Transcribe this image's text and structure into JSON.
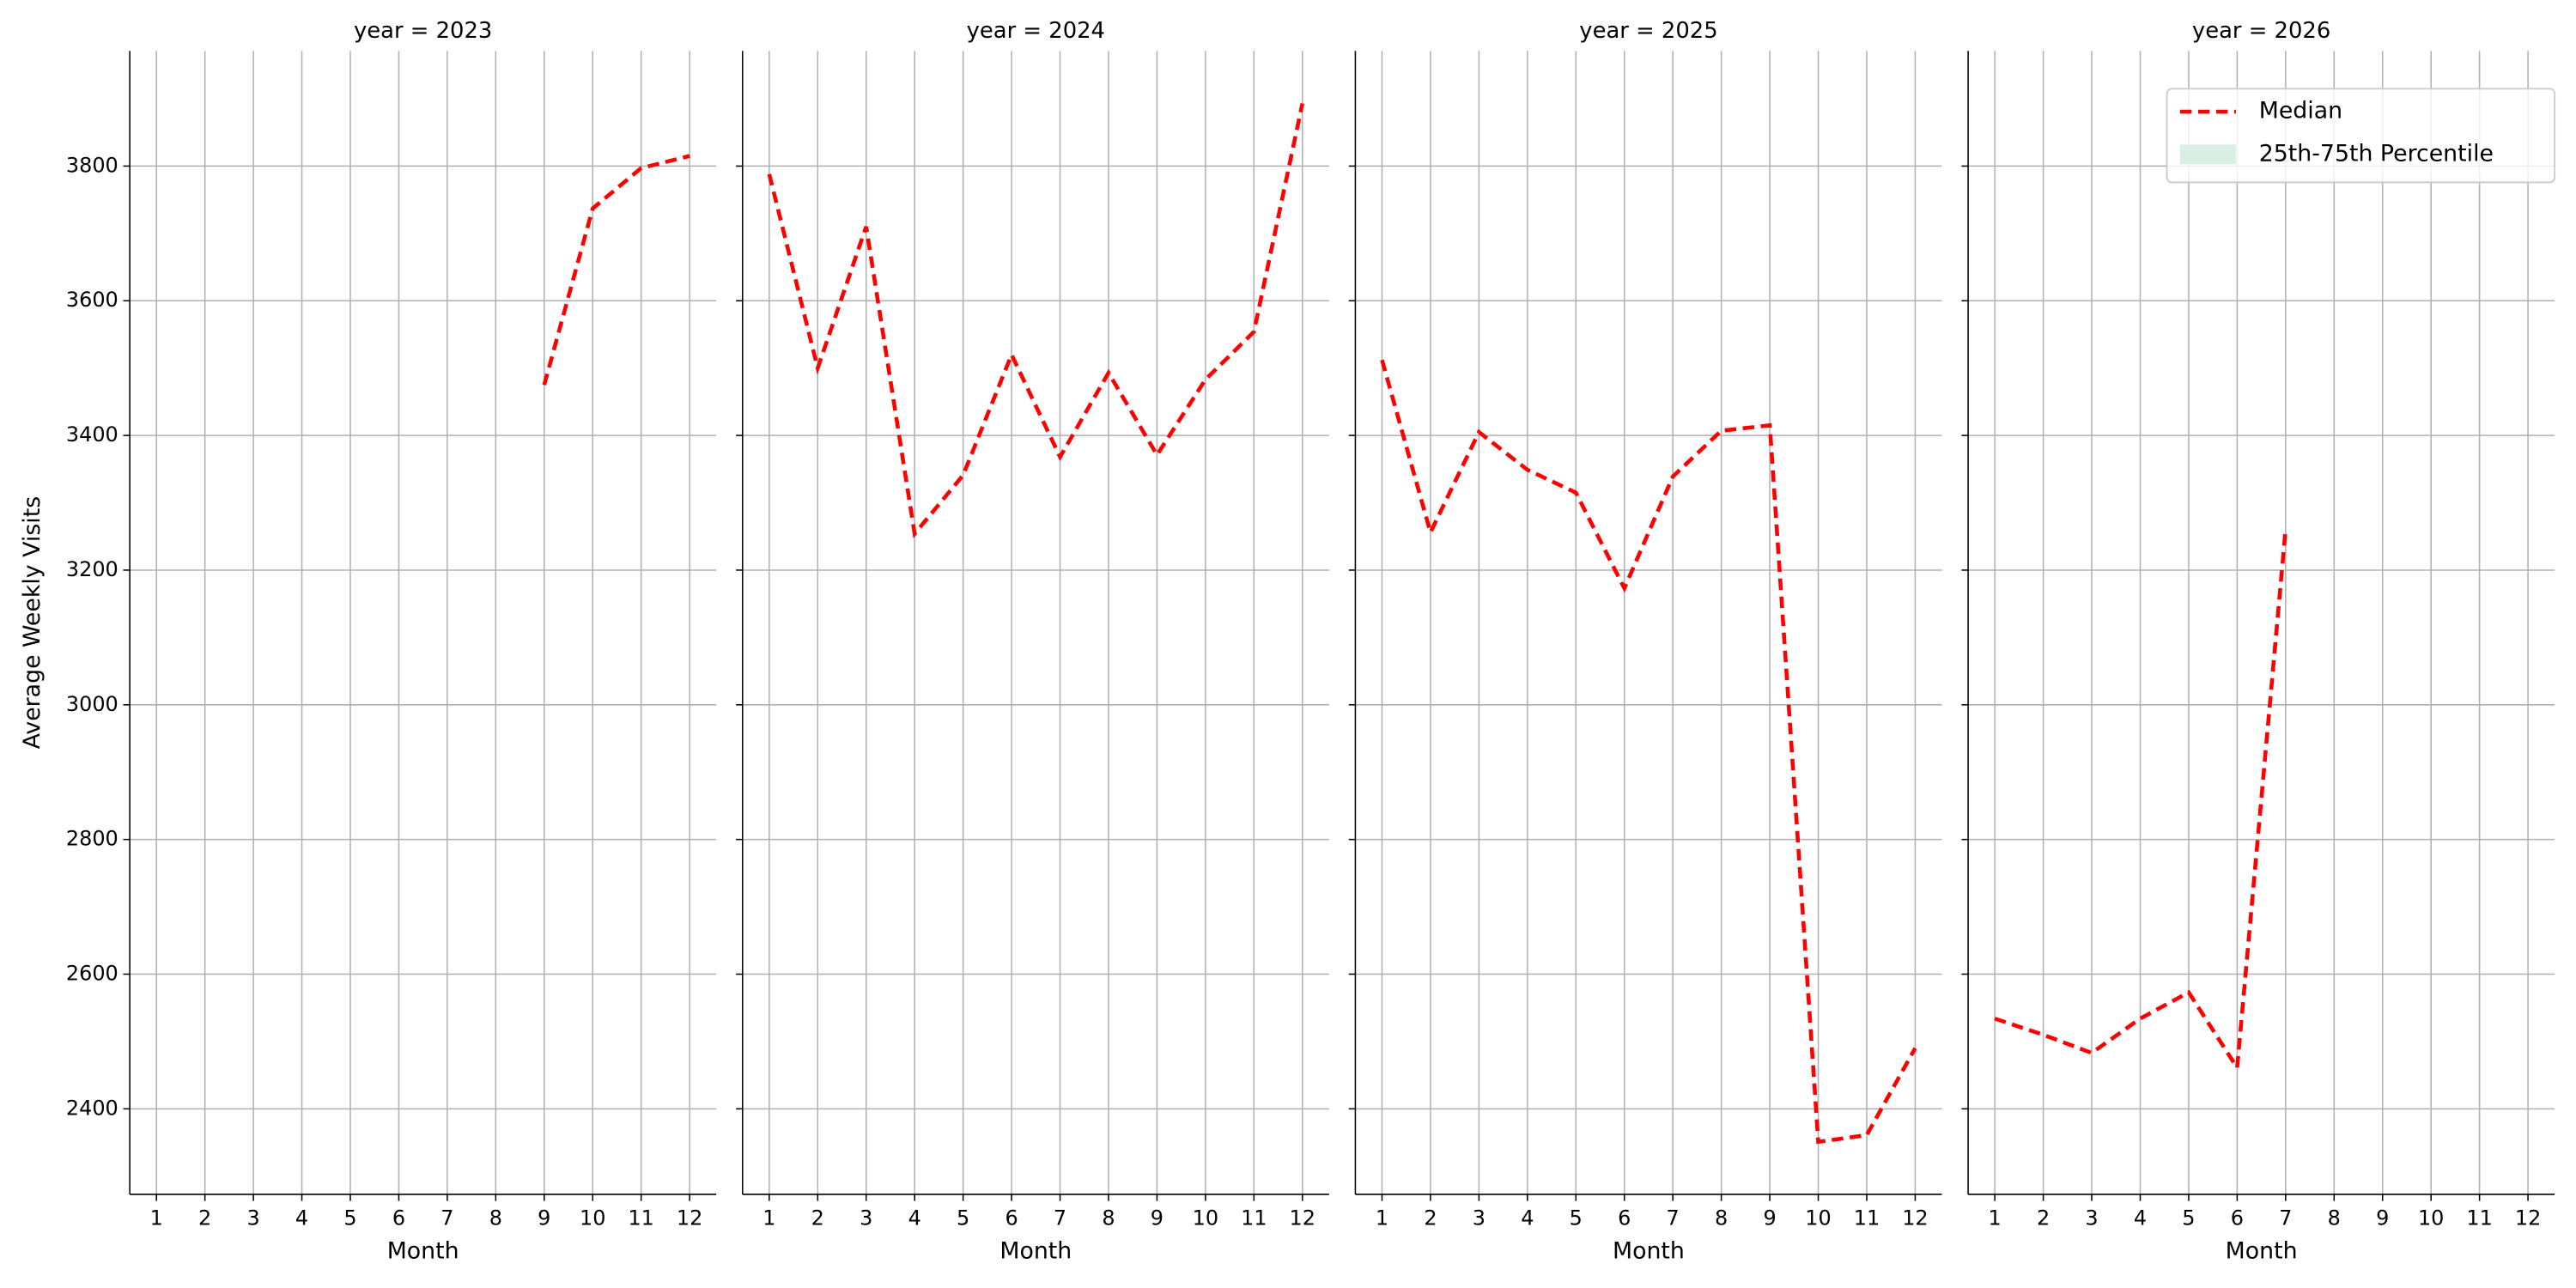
{
  "chart_data": [
    {
      "type": "line",
      "title": "year = 2023",
      "xlabel": "Month",
      "ylabel": "Average Weekly Visits",
      "x": [
        1,
        2,
        3,
        4,
        5,
        6,
        7,
        8,
        9,
        10,
        11,
        12
      ],
      "xlim": [
        0.45,
        12.55
      ],
      "xticks": [
        1,
        2,
        3,
        4,
        5,
        6,
        7,
        8,
        9,
        10,
        11,
        12
      ],
      "ylim": [
        2273,
        3971
      ],
      "yticks": [
        2400,
        2600,
        2800,
        3000,
        3200,
        3400,
        3600,
        3800
      ],
      "grid": true,
      "series": [
        {
          "name": "Median",
          "color": "#ff0000",
          "values": [
            null,
            null,
            null,
            null,
            null,
            null,
            null,
            null,
            3475,
            3737,
            3797,
            3815
          ]
        }
      ]
    },
    {
      "type": "line",
      "title": "year = 2024",
      "xlabel": "Month",
      "x": [
        1,
        2,
        3,
        4,
        5,
        6,
        7,
        8,
        9,
        10,
        11,
        12
      ],
      "xlim": [
        0.45,
        12.55
      ],
      "xticks": [
        1,
        2,
        3,
        4,
        5,
        6,
        7,
        8,
        9,
        10,
        11,
        12
      ],
      "ylim": [
        2273,
        3971
      ],
      "yticks": [
        2400,
        2600,
        2800,
        3000,
        3200,
        3400,
        3600,
        3800
      ],
      "grid": true,
      "series": [
        {
          "name": "Median",
          "color": "#ff0000",
          "values": [
            3788,
            3500,
            3710,
            3254,
            3341,
            3520,
            3368,
            3493,
            3371,
            3483,
            3554,
            3893
          ]
        }
      ]
    },
    {
      "type": "line",
      "title": "year = 2025",
      "xlabel": "Month",
      "x": [
        1,
        2,
        3,
        4,
        5,
        6,
        7,
        8,
        9,
        10,
        11,
        12
      ],
      "xlim": [
        0.45,
        12.55
      ],
      "xticks": [
        1,
        2,
        3,
        4,
        5,
        6,
        7,
        8,
        9,
        10,
        11,
        12
      ],
      "ylim": [
        2273,
        3971
      ],
      "yticks": [
        2400,
        2600,
        2800,
        3000,
        3200,
        3400,
        3600,
        3800
      ],
      "grid": true,
      "series": [
        {
          "name": "Median",
          "color": "#ff0000",
          "values": [
            3512,
            3256,
            3405,
            3349,
            3315,
            3173,
            3339,
            3407,
            3415,
            2351,
            2361,
            2490
          ]
        }
      ]
    },
    {
      "type": "line",
      "title": "year = 2026",
      "xlabel": "Month",
      "x": [
        1,
        2,
        3,
        4,
        5,
        6,
        7,
        8,
        9,
        10,
        11,
        12
      ],
      "xlim": [
        0.45,
        12.55
      ],
      "xticks": [
        1,
        2,
        3,
        4,
        5,
        6,
        7,
        8,
        9,
        10,
        11,
        12
      ],
      "ylim": [
        2273,
        3971
      ],
      "yticks": [
        2400,
        2600,
        2800,
        3000,
        3200,
        3400,
        3600,
        3800
      ],
      "grid": true,
      "legend": "upper right",
      "series": [
        {
          "name": "Median",
          "color": "#ff0000",
          "values": [
            2534,
            2510,
            2483,
            2534,
            2573,
            2461,
            3261,
            null,
            null,
            null,
            null,
            null
          ]
        },
        {
          "name": "25th-75th Percentile",
          "color": "#d9efe6"
        }
      ]
    }
  ]
}
